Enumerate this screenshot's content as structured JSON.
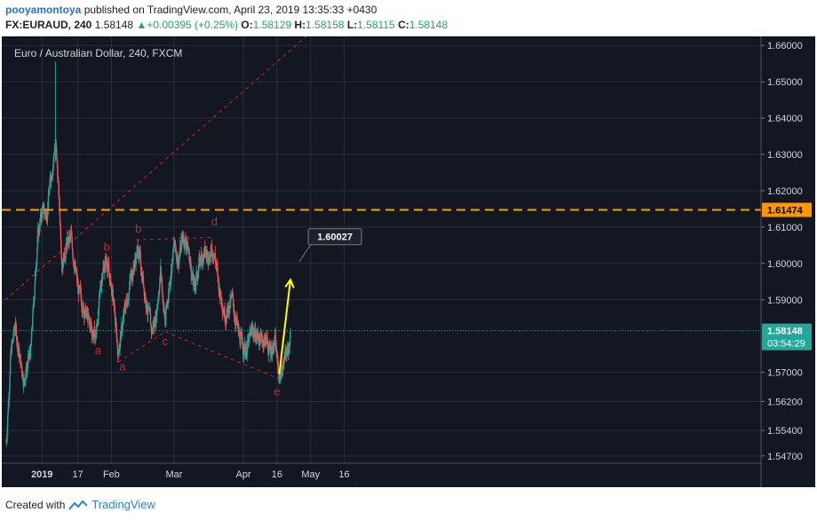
{
  "header": {
    "author": "pooyamontoya",
    "published_text": "published on TradingView.com, April 23, 2019 13:35:33 +0430",
    "symbol": "FX:EURAUD, 240",
    "last": "1.58148",
    "change": "+0.00395 (+0.25%)",
    "o_label": "O:",
    "o_value": "1.58129",
    "h_label": "H:",
    "h_value": "1.58158",
    "l_label": "L:",
    "l_value": "1.58115",
    "c_label": "C:",
    "c_value": "1.58148"
  },
  "footer": {
    "created_with": "Created with",
    "brand": "TradingView"
  },
  "colors": {
    "background": "#131722",
    "grid": "#2a2e39",
    "up": "#26a69a",
    "down": "#ef5350",
    "orange_level": "#ff9800",
    "pattern_red": "#c62828",
    "arrow": "#ffff00"
  },
  "chart_data": {
    "type": "candlestick",
    "title": "Euro / Australian Dollar, 240, FXCM",
    "x_ticks": [
      "2019",
      "17",
      "Feb",
      "Mar",
      "Apr",
      "16",
      "May",
      "16"
    ],
    "y_ticks": [
      "1.66000",
      "1.65000",
      "1.64000",
      "1.63000",
      "1.62000",
      "1.61000",
      "1.60000",
      "1.59000",
      "1.57000",
      "1.56200",
      "1.55400",
      "1.54700"
    ],
    "y_range": [
      1.545,
      1.6625
    ],
    "current_price": {
      "value": 1.58148,
      "label": "1.58148",
      "countdown": "03:54:29"
    },
    "horizontal_level": {
      "value": 1.61474,
      "label": "1.61474"
    },
    "target": {
      "value": 1.60027,
      "label": "1.60027"
    },
    "pattern_labels": [
      {
        "text": "a",
        "date": "2019-01-26",
        "price": 1.575
      },
      {
        "text": "a",
        "date": "2019-02-06",
        "price": 1.5705
      },
      {
        "text": "b",
        "date": "2019-01-30",
        "price": 1.6035
      },
      {
        "text": "b",
        "date": "2019-02-13",
        "price": 1.6085
      },
      {
        "text": "c",
        "date": "2019-02-25",
        "price": 1.5775
      },
      {
        "text": "d",
        "date": "2019-03-19",
        "price": 1.6105
      },
      {
        "text": "e",
        "date": "2019-04-16",
        "price": 1.5637
      }
    ],
    "trendlines": [
      {
        "from": {
          "date": "2018-12-06",
          "price": 1.5848
        },
        "to": {
          "date": "2019-04-29",
          "price": 1.6625
        }
      },
      {
        "from": {
          "date": "2019-02-12",
          "price": 1.6065
        },
        "to": {
          "date": "2019-03-19",
          "price": 1.6072
        }
      },
      {
        "from": {
          "date": "2019-02-04",
          "price": 1.5728
        },
        "to": {
          "date": "2019-02-25",
          "price": 1.5812
        }
      },
      {
        "from": {
          "date": "2019-02-25",
          "price": 1.5812
        },
        "to": {
          "date": "2019-04-17",
          "price": 1.5682
        }
      }
    ],
    "arrow": {
      "from": {
        "date": "2019-04-17",
        "price": 1.5695
      },
      "to": {
        "date": "2019-04-22",
        "price": 1.5955
      }
    },
    "price_path": [
      [
        "2018-12-16",
        1.5505
      ],
      [
        "2018-12-18",
        1.5745
      ],
      [
        "2018-12-20",
        1.5832
      ],
      [
        "2018-12-22",
        1.574
      ],
      [
        "2018-12-24",
        1.568
      ],
      [
        "2018-12-27",
        1.576
      ],
      [
        "2018-12-30",
        1.607
      ],
      [
        "2019-01-01",
        1.6145
      ],
      [
        "2019-01-03",
        1.6135
      ],
      [
        "2019-01-05",
        1.624
      ],
      [
        "2019-01-07",
        1.6335
      ],
      [
        "2019-01-08",
        1.6245
      ],
      [
        "2019-01-10",
        1.6005
      ],
      [
        "2019-01-12",
        1.605
      ],
      [
        "2019-01-14",
        1.607
      ],
      [
        "2019-01-17",
        1.593
      ],
      [
        "2019-01-20",
        1.587
      ],
      [
        "2019-01-23",
        1.582
      ],
      [
        "2019-01-25",
        1.5795
      ],
      [
        "2019-01-28",
        1.598
      ],
      [
        "2019-01-30",
        1.601
      ],
      [
        "2019-02-02",
        1.589
      ],
      [
        "2019-02-04",
        1.5755
      ],
      [
        "2019-02-07",
        1.587
      ],
      [
        "2019-02-10",
        1.597
      ],
      [
        "2019-02-13",
        1.604
      ],
      [
        "2019-02-16",
        1.592
      ],
      [
        "2019-02-19",
        1.581
      ],
      [
        "2019-02-21",
        1.586
      ],
      [
        "2019-02-23",
        1.598
      ],
      [
        "2019-02-25",
        1.5835
      ],
      [
        "2019-02-27",
        1.595
      ],
      [
        "2019-03-01",
        1.605
      ],
      [
        "2019-03-03",
        1.601
      ],
      [
        "2019-03-05",
        1.6075
      ],
      [
        "2019-03-07",
        1.605
      ],
      [
        "2019-03-10",
        1.593
      ],
      [
        "2019-03-13",
        1.602
      ],
      [
        "2019-03-16",
        1.6025
      ],
      [
        "2019-03-19",
        1.6035
      ],
      [
        "2019-03-21",
        1.5935
      ],
      [
        "2019-03-24",
        1.586
      ],
      [
        "2019-03-27",
        1.59
      ],
      [
        "2019-03-30",
        1.58
      ],
      [
        "2019-04-02",
        1.576
      ],
      [
        "2019-04-05",
        1.5815
      ],
      [
        "2019-04-08",
        1.5795
      ],
      [
        "2019-04-11",
        1.579
      ],
      [
        "2019-04-13",
        1.5755
      ],
      [
        "2019-04-15",
        1.579
      ],
      [
        "2019-04-17",
        1.5685
      ],
      [
        "2019-04-19",
        1.5725
      ],
      [
        "2019-04-21",
        1.5765
      ],
      [
        "2019-04-22",
        1.5815
      ]
    ]
  }
}
